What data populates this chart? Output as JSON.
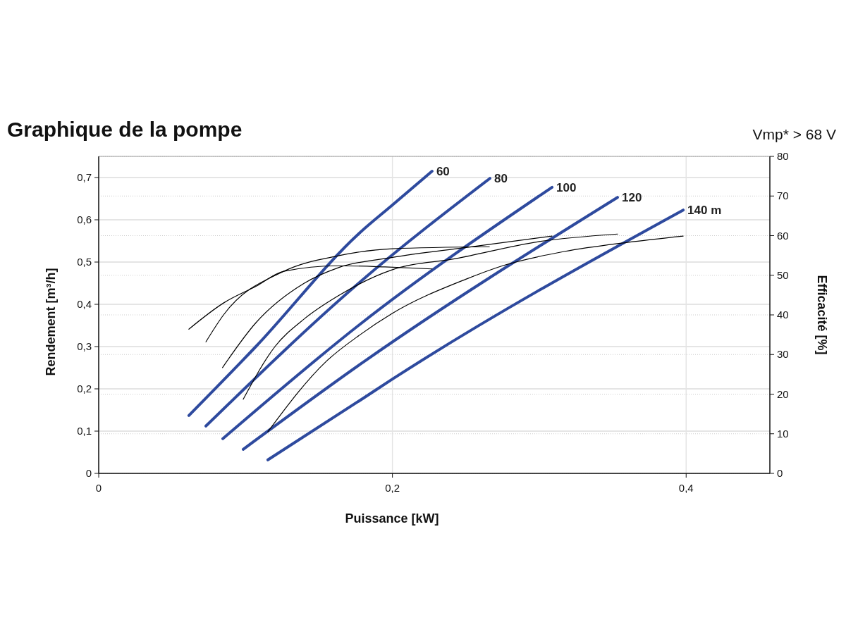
{
  "chart_data": {
    "type": "line",
    "title": "Graphique de la pompe",
    "subtitle": "Vmp* > 68 V",
    "xlabel": "Puissance [kW]",
    "ylabel": "Rendement [m³/h]",
    "y2label": "Efficacité [%]",
    "xlim": [
      0,
      0.457
    ],
    "xticks": [
      0,
      {
        "value": 0.2,
        "label": "0,2"
      },
      {
        "value": 0.4,
        "label": "0,4"
      }
    ],
    "ylim": [
      0,
      0.75
    ],
    "yticks": [
      0,
      {
        "value": 0.1,
        "label": "0,1"
      },
      {
        "value": 0.2,
        "label": "0,2"
      },
      {
        "value": 0.3,
        "label": "0,3"
      },
      {
        "value": 0.4,
        "label": "0,4"
      },
      {
        "value": 0.5,
        "label": "0,5"
      },
      {
        "value": 0.6,
        "label": "0,6"
      },
      {
        "value": 0.7,
        "label": "0,7"
      }
    ],
    "y2lim": [
      0,
      80
    ],
    "y2ticks": [
      0,
      10,
      20,
      30,
      40,
      50,
      60,
      70,
      80
    ],
    "grid": true,
    "marker": "none",
    "line_style": "solid",
    "series": [
      {
        "name": "60",
        "color": "#2e4a9e",
        "x": [
          0.0614,
          0.107,
          0.178,
          0.2,
          0.227
        ],
        "values": [
          0.137,
          0.3,
          0.57,
          0.635,
          0.715
        ]
      },
      {
        "name": "80",
        "color": "#2e4a9e",
        "x": [
          0.073,
          0.178,
          0.2664
        ],
        "values": [
          0.112,
          0.453,
          0.698
        ]
      },
      {
        "name": "100",
        "color": "#2e4a9e",
        "x": [
          0.0845,
          0.178,
          0.3087
        ],
        "values": [
          0.082,
          0.353,
          0.677
        ]
      },
      {
        "name": "120",
        "color": "#2e4a9e",
        "x": [
          0.0984,
          0.178,
          0.3533
        ],
        "values": [
          0.057,
          0.258,
          0.653
        ]
      },
      {
        "name": "140 m",
        "color": "#2e4a9e",
        "x": [
          0.1152,
          0.178,
          0.2,
          0.398
        ],
        "values": [
          0.032,
          0.173,
          0.223,
          0.623
        ]
      },
      {
        "color": "#000000",
        "axis": "y2",
        "x": [
          0.0614,
          0.085,
          0.107,
          0.126,
          0.163,
          0.195,
          0.227
        ],
        "values": [
          36.4,
          43,
          47.2,
          51.0,
          52.4,
          52.1,
          51.6
        ]
      },
      {
        "color": "#000000",
        "axis": "y2",
        "x": [
          0.073,
          0.085,
          0.126,
          0.163,
          0.2,
          0.266
        ],
        "values": [
          33.2,
          40,
          51,
          54.9,
          56.7,
          57.2
        ]
      },
      {
        "color": "#000000",
        "axis": "y2",
        "x": [
          0.0843,
          0.107,
          0.14,
          0.163,
          0.2,
          0.25,
          0.3087
        ],
        "values": [
          26.7,
          38,
          48,
          51.9,
          54.5,
          57,
          59.9
        ]
      },
      {
        "color": "#000000",
        "axis": "y2",
        "x": [
          0.0984,
          0.12,
          0.14,
          0.163,
          0.2,
          0.243,
          0.3,
          0.3533
        ],
        "values": [
          18.7,
          32,
          39,
          44.8,
          51.4,
          54.2,
          58.5,
          60.4
        ]
      },
      {
        "color": "#000000",
        "axis": "y2",
        "x": [
          0.1152,
          0.155,
          0.178,
          0.2,
          0.25,
          0.275,
          0.317,
          0.36,
          0.398
        ],
        "values": [
          10.5,
          28.3,
          35,
          40.4,
          49,
          52.4,
          56,
          58.3,
          59.9
        ]
      }
    ]
  }
}
